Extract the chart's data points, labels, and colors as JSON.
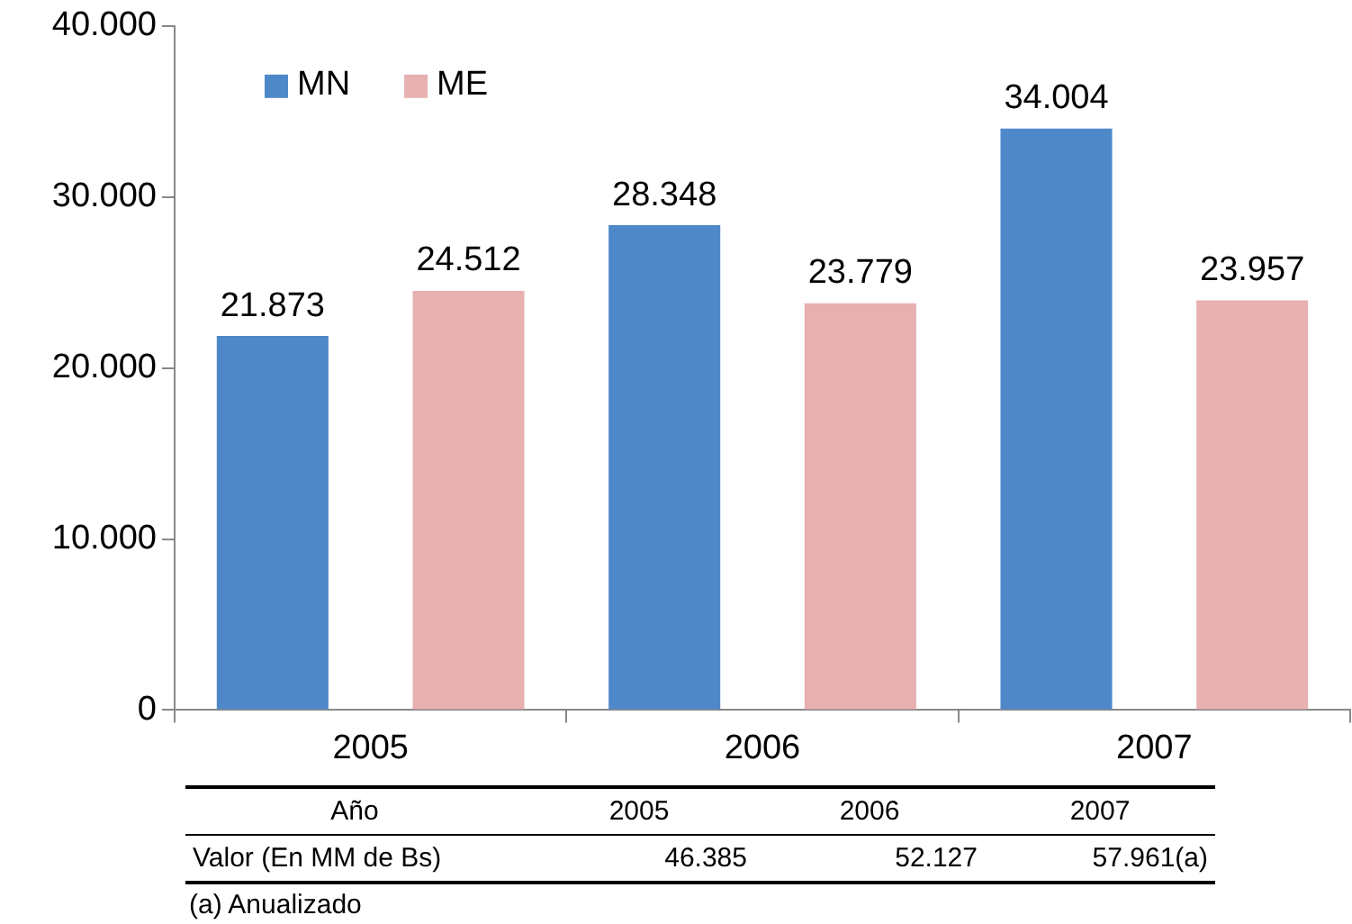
{
  "chart_data": {
    "type": "bar",
    "categories": [
      "2005",
      "2006",
      "2007"
    ],
    "series": [
      {
        "name": "MN",
        "color": "#4f88c9",
        "values": [
          21873,
          28348,
          34004
        ],
        "value_labels": [
          "21.873",
          "28.348",
          "34.004"
        ]
      },
      {
        "name": "ME",
        "color": "#e6b1b0",
        "values": [
          24512,
          23779,
          23957
        ],
        "value_labels": [
          "24.512",
          "23.779",
          "23.957"
        ]
      }
    ],
    "ylim": [
      0,
      40000
    ],
    "yticks": [
      {
        "value": 0,
        "label": "0"
      },
      {
        "value": 10000,
        "label": "10.000"
      },
      {
        "value": 20000,
        "label": "20.000"
      },
      {
        "value": 30000,
        "label": "30.000"
      },
      {
        "value": 40000,
        "label": "40.000"
      }
    ],
    "grid": false,
    "legend": "top left",
    "annotations": [
      "Año",
      "2005",
      "2006",
      "2007",
      "Valor (En MM de Bs)",
      "46.385",
      "52.127",
      "57.961(a)",
      "(a) Anualizado"
    ]
  }
}
